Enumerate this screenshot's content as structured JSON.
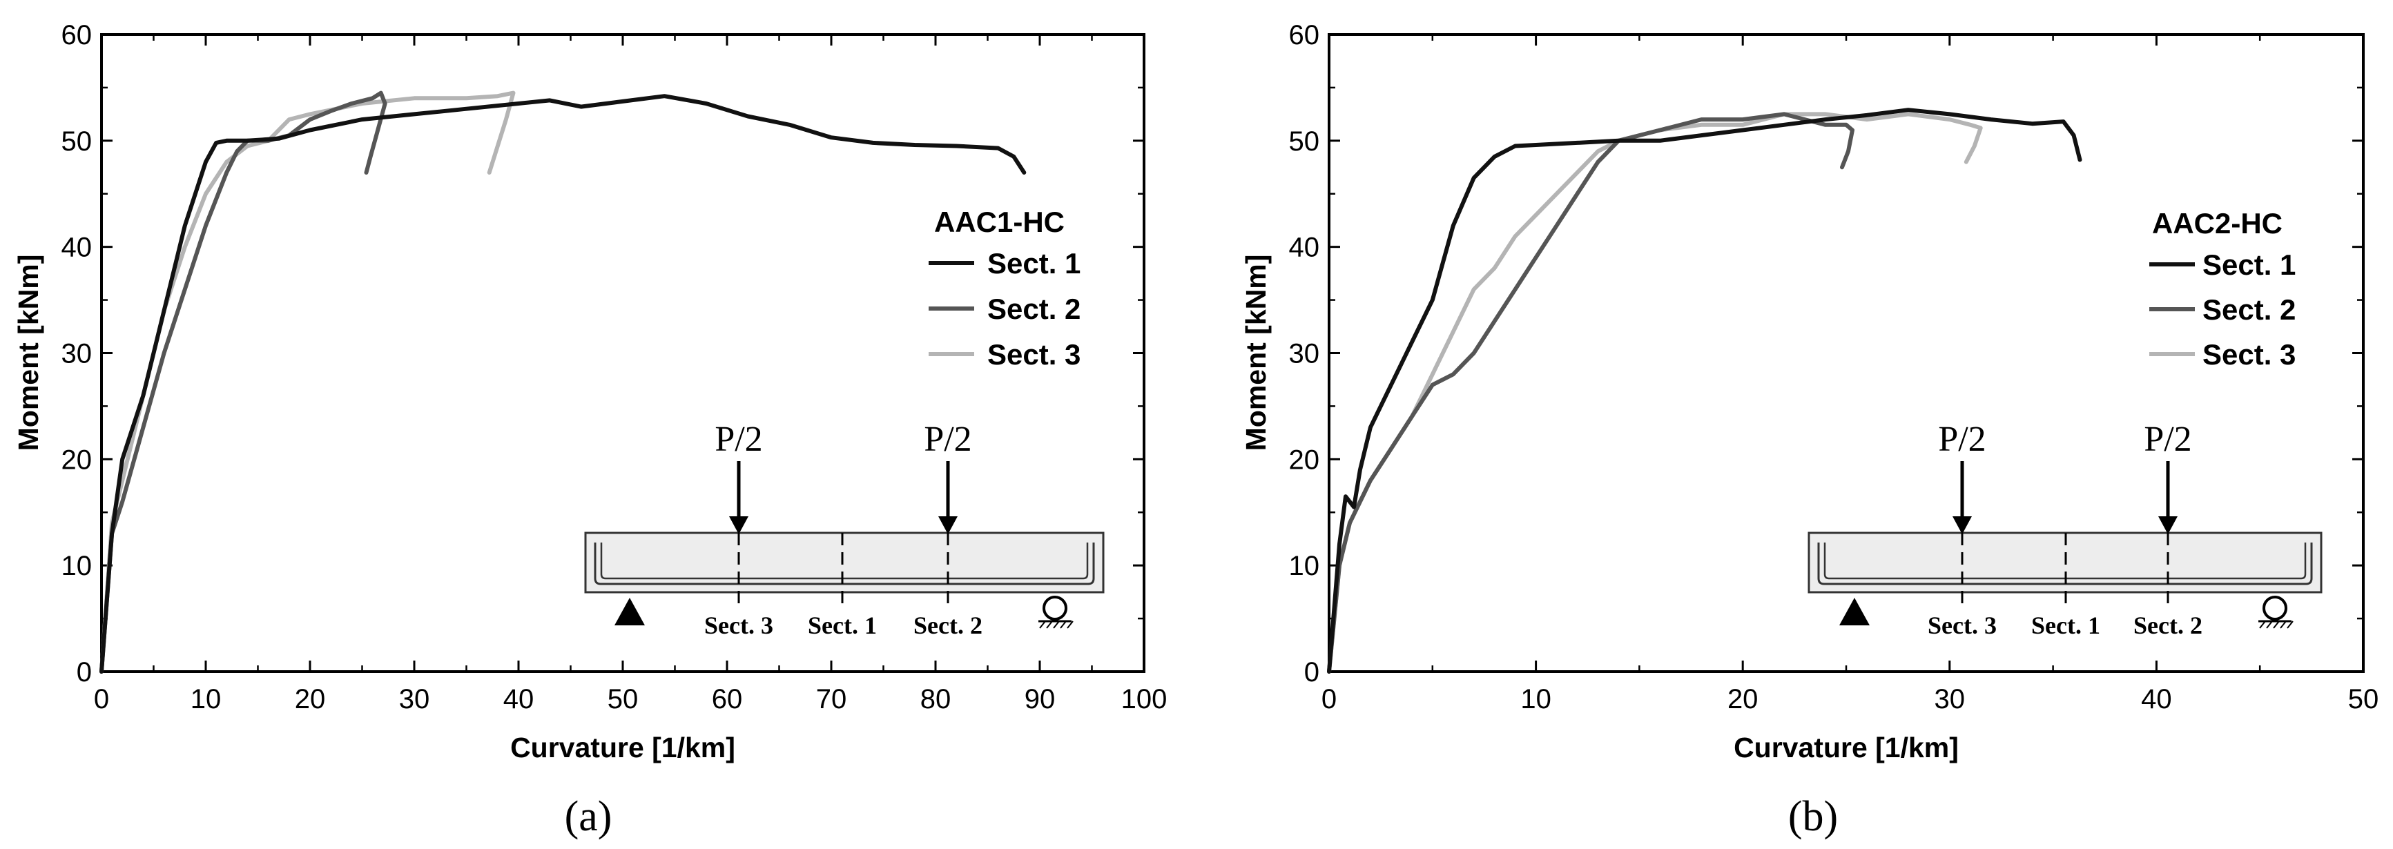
{
  "chart_data": [
    {
      "type": "line",
      "panel_label": "(a)",
      "xlabel": "Curvature [1/km]",
      "ylabel": "Moment [kNm]",
      "xlim": [
        0,
        100
      ],
      "ylim": [
        0,
        60
      ],
      "xticks": [
        0,
        10,
        20,
        30,
        40,
        50,
        60,
        70,
        80,
        90,
        100
      ],
      "yticks": [
        0,
        10,
        20,
        30,
        40,
        50,
        60
      ],
      "legend_title": "AAC1-HC",
      "colors": [
        "#111111",
        "#555555",
        "#b4b4b4"
      ],
      "series": [
        {
          "name": "Sect. 1",
          "x": [
            0,
            1,
            2,
            4,
            6,
            8,
            10,
            11,
            12,
            14,
            17,
            20,
            25,
            30,
            35,
            40,
            43,
            46,
            50,
            54,
            58,
            62,
            66,
            70,
            74,
            78,
            82,
            86,
            87.5,
            88.5
          ],
          "y": [
            0,
            13,
            20,
            26,
            34,
            42,
            48,
            49.8,
            50,
            50,
            50.2,
            51,
            52,
            52.5,
            53,
            53.5,
            53.8,
            53.2,
            53.7,
            54.2,
            53.5,
            52.3,
            51.5,
            50.3,
            49.8,
            49.6,
            49.5,
            49.3,
            48.5,
            47
          ]
        },
        {
          "name": "Sect. 2",
          "x": [
            0,
            1,
            2,
            4,
            6,
            8,
            10,
            12,
            13,
            14,
            16,
            18,
            20,
            22,
            24,
            26,
            26.8,
            27.2,
            26.5,
            25.8,
            25.4
          ],
          "y": [
            0,
            13,
            16,
            23,
            30,
            36,
            42,
            47,
            49,
            50,
            50,
            50.5,
            52,
            52.8,
            53.5,
            54,
            54.5,
            53.5,
            51,
            48.5,
            47
          ]
        },
        {
          "name": "Sect. 3",
          "x": [
            0,
            1,
            2,
            4,
            6,
            8,
            10,
            12,
            14,
            16,
            18,
            20,
            25,
            30,
            35,
            38,
            39.5,
            38.8,
            38,
            37.2
          ],
          "y": [
            0,
            14,
            18,
            26,
            34,
            40,
            45,
            48,
            49.5,
            50,
            52,
            52.5,
            53.5,
            54,
            54,
            54.2,
            54.5,
            52,
            49.5,
            47
          ]
        }
      ],
      "inset": {
        "load_labels": [
          "P/2",
          "P/2"
        ],
        "section_labels": [
          "Sect. 3",
          "Sect. 1",
          "Sect. 2"
        ]
      }
    },
    {
      "type": "line",
      "panel_label": "(b)",
      "xlabel": "Curvature [1/km]",
      "ylabel": "Moment [kNm]",
      "xlim": [
        0,
        50
      ],
      "ylim": [
        0,
        60
      ],
      "xticks": [
        0,
        10,
        20,
        30,
        40,
        50
      ],
      "yticks": [
        0,
        10,
        20,
        30,
        40,
        50,
        60
      ],
      "legend_title": "AAC2-HC",
      "colors": [
        "#111111",
        "#555555",
        "#b4b4b4"
      ],
      "series": [
        {
          "name": "Sect. 1",
          "x": [
            0,
            0.5,
            0.8,
            1.2,
            1.5,
            2,
            3,
            4,
            5,
            5.5,
            6,
            7,
            8,
            9,
            10,
            12,
            14,
            16,
            18,
            20,
            22,
            24,
            26,
            28,
            30,
            32,
            34,
            35.5,
            36,
            36.3
          ],
          "y": [
            0,
            12,
            16.5,
            15.5,
            19,
            23,
            27,
            31,
            35,
            38.5,
            42,
            46.5,
            48.5,
            49.5,
            49.6,
            49.8,
            50,
            50,
            50.5,
            51,
            51.5,
            52,
            52.4,
            52.9,
            52.5,
            52,
            51.6,
            51.8,
            50.5,
            48.2
          ]
        },
        {
          "name": "Sect. 2",
          "x": [
            0,
            0.5,
            1,
            2,
            3,
            4,
            5,
            6,
            7,
            8,
            9,
            10,
            11,
            12,
            13,
            14,
            16,
            18,
            20,
            22,
            23,
            24,
            25,
            25.3,
            25.1,
            24.8
          ],
          "y": [
            0,
            10,
            14,
            18,
            21,
            24,
            27,
            28,
            30,
            33,
            36,
            39,
            42,
            45,
            48,
            50,
            51,
            52,
            52,
            52.5,
            52,
            51.5,
            51.5,
            51,
            49,
            47.5
          ]
        },
        {
          "name": "Sect. 3",
          "x": [
            0,
            0.5,
            1,
            2,
            3,
            4,
            5,
            6,
            7,
            8,
            9,
            10,
            12,
            13,
            14,
            16,
            18,
            20,
            22,
            24,
            26,
            28,
            30,
            31,
            31.5,
            31.2,
            30.8
          ],
          "y": [
            0,
            10,
            14,
            18,
            21,
            24,
            28,
            32,
            36,
            38,
            41,
            43,
            47,
            49,
            50,
            51,
            51.5,
            51.5,
            52.5,
            52.5,
            52,
            52.5,
            52,
            51.5,
            51.2,
            49.5,
            48
          ]
        }
      ],
      "inset": {
        "load_labels": [
          "P/2",
          "P/2"
        ],
        "section_labels": [
          "Sect. 3",
          "Sect. 1",
          "Sect. 2"
        ]
      }
    }
  ]
}
